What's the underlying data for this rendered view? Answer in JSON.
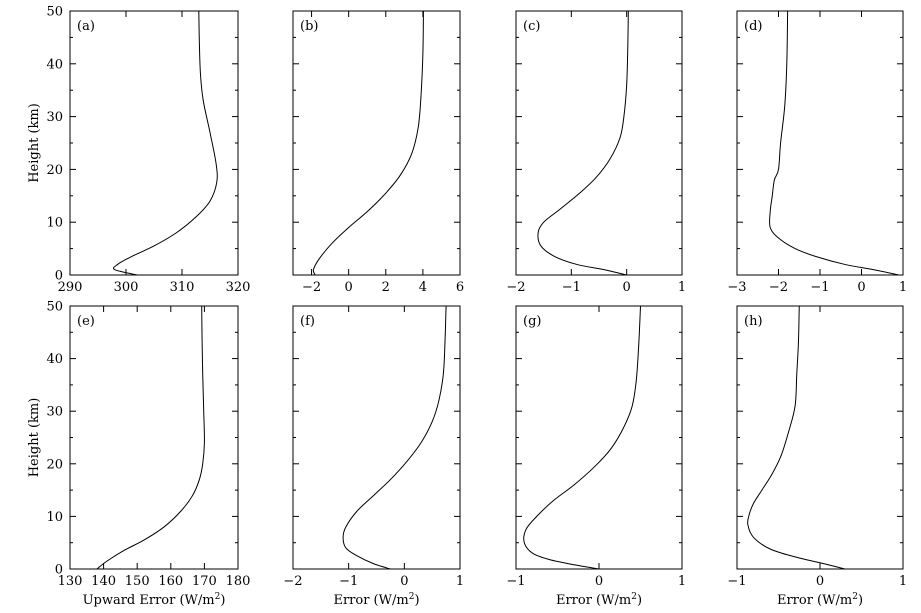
{
  "chart_data": [
    {
      "panel": "(a)",
      "type": "line",
      "xlim": [
        290,
        320
      ],
      "ylim": [
        0,
        50
      ],
      "xticks": [
        "290",
        "300",
        "310",
        "320"
      ],
      "yticks": [
        "0",
        "10",
        "20",
        "30",
        "40",
        "50"
      ],
      "xlabel": "",
      "ylabel": "Height (km)",
      "series": [
        {
          "x": [
            302,
            298,
            298.5,
            301,
            305,
            309,
            312.5,
            315,
            316.2,
            316.1,
            315,
            313.8,
            313.3,
            313.1,
            313
          ],
          "y": [
            0,
            1,
            2,
            3.5,
            5.5,
            8,
            11,
            14,
            17.5,
            21,
            27,
            33,
            38,
            44,
            50
          ]
        }
      ]
    },
    {
      "panel": "(b)",
      "type": "line",
      "xlim": [
        -3,
        6
      ],
      "ylim": [
        0,
        50
      ],
      "xticks": [
        "−2",
        "0",
        "2",
        "4",
        "6"
      ],
      "yticks": [],
      "xlabel": "",
      "ylabel": "",
      "series": [
        {
          "x": [
            -1.8,
            -1.9,
            -1.6,
            -0.9,
            0,
            1,
            2,
            2.8,
            3.4,
            3.75,
            3.9,
            4,
            4.03
          ],
          "y": [
            0,
            1,
            3,
            6,
            9,
            12,
            15.5,
            19,
            23,
            28,
            34,
            42,
            50
          ]
        }
      ]
    },
    {
      "panel": "(c)",
      "type": "line",
      "xlim": [
        -2,
        1
      ],
      "ylim": [
        0,
        50
      ],
      "xticks": [
        "−2",
        "−1",
        "0",
        "1"
      ],
      "yticks": [],
      "xlabel": "",
      "ylabel": "",
      "series": [
        {
          "x": [
            0,
            -0.4,
            -0.9,
            -1.3,
            -1.55,
            -1.6,
            -1.5,
            -1.2,
            -0.85,
            -0.55,
            -0.3,
            -0.12,
            -0.05,
            0,
            0.02,
            0.03
          ],
          "y": [
            0,
            1,
            2,
            3.5,
            5.5,
            8,
            10,
            12.5,
            15.5,
            18.5,
            22,
            26,
            30,
            36,
            43,
            50
          ]
        }
      ]
    },
    {
      "panel": "(d)",
      "type": "line",
      "xlim": [
        -3,
        1
      ],
      "ylim": [
        0,
        50
      ],
      "xticks": [
        "−3",
        "−2",
        "−1",
        "0",
        "1"
      ],
      "yticks": [],
      "xlabel": "",
      "ylabel": "",
      "series": [
        {
          "x": [
            0.9,
            0.3,
            -0.4,
            -1.1,
            -1.6,
            -2,
            -2.2,
            -2.2,
            -2.15,
            -2.1,
            -2,
            -1.95,
            -1.85,
            -1.8,
            -1.78
          ],
          "y": [
            0,
            1,
            2,
            3.5,
            5,
            7,
            9,
            12,
            15,
            18,
            20,
            25,
            32,
            40,
            50
          ]
        }
      ]
    },
    {
      "panel": "(e)",
      "type": "line",
      "xlim": [
        130,
        180
      ],
      "ylim": [
        0,
        50
      ],
      "xticks": [
        "130",
        "140",
        "150",
        "160",
        "170",
        "180"
      ],
      "yticks": [
        "0",
        "10",
        "20",
        "30",
        "40",
        "50"
      ],
      "xlabel": "Upward Error (W/m",
      "xlabel_sup": "2",
      "xlabel_end": ")",
      "ylabel": "Height (km)",
      "series": [
        {
          "x": [
            138,
            141,
            146,
            152,
            158,
            163,
            166.5,
            168.5,
            169.5,
            170,
            169.8,
            169.5,
            169.3,
            169.2
          ],
          "y": [
            0,
            1.5,
            3.5,
            5.5,
            8,
            11,
            14,
            17,
            20,
            24,
            30,
            37,
            44,
            50
          ]
        }
      ]
    },
    {
      "panel": "(f)",
      "type": "line",
      "xlim": [
        -2,
        1
      ],
      "ylim": [
        0,
        50
      ],
      "xticks": [
        "−2",
        "−1",
        "0",
        "1"
      ],
      "yticks": [],
      "xlabel": "Error (W/m",
      "xlabel_sup": "2",
      "xlabel_end": ")",
      "ylabel": "",
      "series": [
        {
          "x": [
            -0.25,
            -0.55,
            -0.85,
            -1.05,
            -1.1,
            -1.05,
            -0.85,
            -0.55,
            -0.25,
            0.05,
            0.3,
            0.5,
            0.62,
            0.7,
            0.73,
            0.75
          ],
          "y": [
            0,
            1,
            2.5,
            4,
            6,
            8,
            11,
            14,
            17,
            20.5,
            24,
            28,
            32,
            37,
            43,
            50
          ]
        }
      ]
    },
    {
      "panel": "(g)",
      "type": "line",
      "xlim": [
        -1,
        1
      ],
      "ylim": [
        0,
        50
      ],
      "xticks": [
        "−1",
        "0",
        "1"
      ],
      "yticks": [],
      "xlabel": "Error (W/m",
      "xlabel_sup": "2",
      "xlabel_end": ")",
      "ylabel": "",
      "series": [
        {
          "x": [
            0,
            -0.3,
            -0.6,
            -0.8,
            -0.9,
            -0.88,
            -0.75,
            -0.55,
            -0.3,
            -0.05,
            0.15,
            0.3,
            0.4,
            0.45,
            0.48,
            0.5
          ],
          "y": [
            0,
            0.8,
            1.8,
            3,
            5,
            7.5,
            10,
            13,
            16,
            19.5,
            23,
            27,
            31,
            36,
            43,
            50
          ]
        }
      ]
    },
    {
      "panel": "(h)",
      "type": "line",
      "xlim": [
        -1,
        1
      ],
      "ylim": [
        0,
        50
      ],
      "xticks": [
        "−1",
        "0",
        "1"
      ],
      "yticks": [],
      "xlabel": "Error (W/m",
      "xlabel_sup": "2",
      "xlabel_end": ")",
      "ylabel": "",
      "series": [
        {
          "x": [
            0.3,
            0.05,
            -0.3,
            -0.6,
            -0.8,
            -0.87,
            -0.85,
            -0.8,
            -0.7,
            -0.58,
            -0.47,
            -0.38,
            -0.3,
            -0.28,
            -0.26,
            -0.25
          ],
          "y": [
            0,
            1,
            2.3,
            3.8,
            6,
            8.5,
            10.5,
            12.5,
            15,
            18,
            21.5,
            26,
            31,
            37,
            43,
            50
          ]
        }
      ]
    }
  ]
}
